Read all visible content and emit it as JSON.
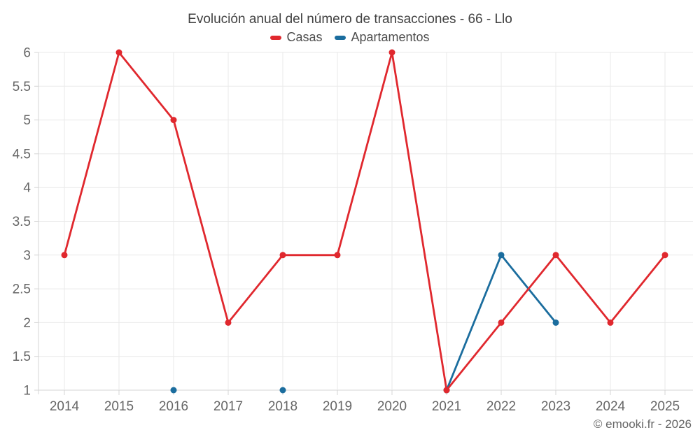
{
  "title": "Evolución anual del número de transacciones - 66 - Llo",
  "footer": "© emooki.fr - 2026",
  "colors": {
    "background": "#ffffff",
    "title_text": "#424242",
    "legend_text": "#4d4d4d",
    "tick_text": "#666666",
    "grid": "#e9e9e9",
    "axis_border": "#d4d4d4",
    "casas": "#e0282e",
    "apartamentos": "#1b6d9e"
  },
  "legend": [
    {
      "label": "Casas",
      "color": "#e0282e"
    },
    {
      "label": "Apartamentos",
      "color": "#1b6d9e"
    }
  ],
  "chart_data": {
    "type": "line",
    "title": "Evolución anual del número de transacciones - 66 - Llo",
    "xlabel": "",
    "ylabel": "",
    "categories": [
      "2014",
      "2015",
      "2016",
      "2017",
      "2018",
      "2019",
      "2020",
      "2021",
      "2022",
      "2023",
      "2024",
      "2025"
    ],
    "series": [
      {
        "name": "Casas",
        "color": "#e0282e",
        "values": [
          3,
          6,
          5,
          2,
          3,
          3,
          6,
          1,
          2,
          3,
          2,
          3
        ]
      },
      {
        "name": "Apartamentos",
        "color": "#1b6d9e",
        "values": [
          null,
          null,
          1,
          null,
          1,
          null,
          null,
          1,
          3,
          2,
          null,
          null
        ]
      }
    ],
    "ylim": [
      1,
      6
    ],
    "ytick_step": 0.5,
    "ytick_labels": [
      "1",
      "1.5",
      "2",
      "2.5",
      "3",
      "3.5",
      "4",
      "4.5",
      "5",
      "5.5",
      "6"
    ],
    "grid": true,
    "legend_position": "top",
    "marker_radius": 4.5,
    "line_width": 2.8
  }
}
